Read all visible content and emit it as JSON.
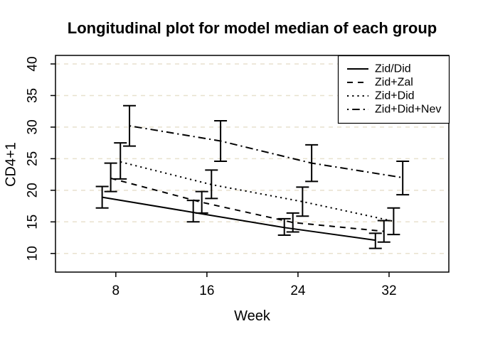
{
  "chart_data": {
    "type": "line",
    "title": "Longitudinal plot for model median of each group",
    "xlabel": "Week",
    "ylabel": "CD4+1",
    "x_ticks": [
      8,
      16,
      24,
      32
    ],
    "y_ticks": [
      10,
      15,
      20,
      25,
      30,
      35,
      40
    ],
    "xlim": [
      2.7,
      37.25
    ],
    "ylim": [
      7.05,
      41.35
    ],
    "grid": {
      "horizontal": true,
      "style": "dashed",
      "color": "#e8e1ce"
    },
    "legend": {
      "position": "top-right"
    },
    "weeks": [
      8,
      16,
      24,
      32
    ],
    "series": [
      {
        "name": "Zid/Did",
        "line_style": "solid",
        "x_offset": -1.2,
        "median": [
          18.9,
          16.5,
          14.1,
          12.1
        ],
        "lower": [
          17.2,
          15.0,
          12.9,
          10.8
        ],
        "upper": [
          20.6,
          18.4,
          15.5,
          13.2
        ]
      },
      {
        "name": "Zid+Zal",
        "line_style": "dashed",
        "x_offset": -0.45,
        "median": [
          21.9,
          18.1,
          14.9,
          13.5
        ],
        "lower": [
          19.8,
          16.4,
          13.4,
          11.8
        ],
        "upper": [
          24.3,
          19.8,
          16.4,
          15.2
        ]
      },
      {
        "name": "Zid+Did",
        "line_style": "dotted",
        "x_offset": 0.4,
        "median": [
          24.5,
          20.9,
          18.2,
          15.1
        ],
        "lower": [
          21.8,
          18.7,
          15.9,
          13.0
        ],
        "upper": [
          27.5,
          23.2,
          20.5,
          17.2
        ]
      },
      {
        "name": "Zid+Did+Nev",
        "line_style": "dashdot",
        "x_offset": 1.2,
        "median": [
          30.2,
          27.8,
          24.3,
          22.0
        ],
        "lower": [
          27.0,
          24.6,
          21.4,
          19.3
        ],
        "upper": [
          33.4,
          31.0,
          27.2,
          24.6
        ]
      }
    ]
  },
  "colors": {
    "foreground": "#000000",
    "background": "#ffffff",
    "grid": "#e8e1ce"
  }
}
